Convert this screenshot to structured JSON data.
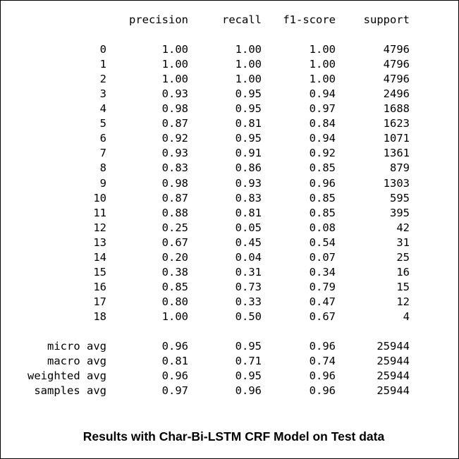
{
  "report": {
    "headers": [
      "precision",
      "recall",
      "f1-score",
      "support"
    ],
    "class_rows": [
      {
        "label": "0",
        "precision": "1.00",
        "recall": "1.00",
        "f1": "1.00",
        "support": "4796"
      },
      {
        "label": "1",
        "precision": "1.00",
        "recall": "1.00",
        "f1": "1.00",
        "support": "4796"
      },
      {
        "label": "2",
        "precision": "1.00",
        "recall": "1.00",
        "f1": "1.00",
        "support": "4796"
      },
      {
        "label": "3",
        "precision": "0.93",
        "recall": "0.95",
        "f1": "0.94",
        "support": "2496"
      },
      {
        "label": "4",
        "precision": "0.98",
        "recall": "0.95",
        "f1": "0.97",
        "support": "1688"
      },
      {
        "label": "5",
        "precision": "0.87",
        "recall": "0.81",
        "f1": "0.84",
        "support": "1623"
      },
      {
        "label": "6",
        "precision": "0.92",
        "recall": "0.95",
        "f1": "0.94",
        "support": "1071"
      },
      {
        "label": "7",
        "precision": "0.93",
        "recall": "0.91",
        "f1": "0.92",
        "support": "1361"
      },
      {
        "label": "8",
        "precision": "0.83",
        "recall": "0.86",
        "f1": "0.85",
        "support": "879"
      },
      {
        "label": "9",
        "precision": "0.98",
        "recall": "0.93",
        "f1": "0.96",
        "support": "1303"
      },
      {
        "label": "10",
        "precision": "0.87",
        "recall": "0.83",
        "f1": "0.85",
        "support": "595"
      },
      {
        "label": "11",
        "precision": "0.88",
        "recall": "0.81",
        "f1": "0.85",
        "support": "395"
      },
      {
        "label": "12",
        "precision": "0.25",
        "recall": "0.05",
        "f1": "0.08",
        "support": "42"
      },
      {
        "label": "13",
        "precision": "0.67",
        "recall": "0.45",
        "f1": "0.54",
        "support": "31"
      },
      {
        "label": "14",
        "precision": "0.20",
        "recall": "0.04",
        "f1": "0.07",
        "support": "25"
      },
      {
        "label": "15",
        "precision": "0.38",
        "recall": "0.31",
        "f1": "0.34",
        "support": "16"
      },
      {
        "label": "16",
        "precision": "0.85",
        "recall": "0.73",
        "f1": "0.79",
        "support": "15"
      },
      {
        "label": "17",
        "precision": "0.80",
        "recall": "0.33",
        "f1": "0.47",
        "support": "12"
      },
      {
        "label": "18",
        "precision": "1.00",
        "recall": "0.50",
        "f1": "0.67",
        "support": "4"
      }
    ],
    "avg_rows": [
      {
        "label": "micro avg",
        "precision": "0.96",
        "recall": "0.95",
        "f1": "0.96",
        "support": "25944"
      },
      {
        "label": "macro avg",
        "precision": "0.81",
        "recall": "0.71",
        "f1": "0.74",
        "support": "25944"
      },
      {
        "label": "weighted avg",
        "precision": "0.96",
        "recall": "0.95",
        "f1": "0.96",
        "support": "25944"
      },
      {
        "label": "samples avg",
        "precision": "0.97",
        "recall": "0.96",
        "f1": "0.96",
        "support": "25944"
      }
    ]
  },
  "caption": "Results with Char-Bi-LSTM CRF Model on Test data"
}
